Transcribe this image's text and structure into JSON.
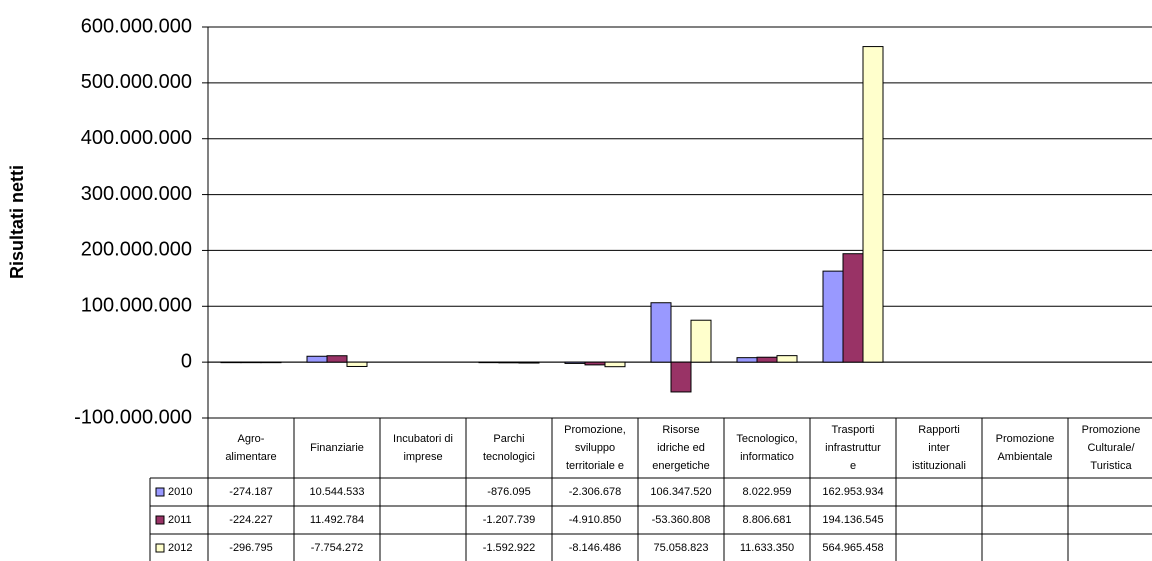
{
  "chart_data": {
    "type": "bar",
    "y_label": "Risultati netti",
    "categories": [
      "Agro-\nalimentare",
      "Finanziarie",
      "Incubatori di\nimprese",
      "Parchi\ntecnologici",
      "Promozione,\nsviluppo\nterritoriale e",
      "Risorse\nidriche ed\nenergetiche",
      "Tecnologico,\ninformatico",
      "Trasporti\ninfrastruttur\ne",
      "Rapporti\ninter\nistituzionali",
      "Promozione\nAmbientale",
      "Promozione\nCulturale/\nTuristica"
    ],
    "series": [
      {
        "name": "2010",
        "color": "#9999ff",
        "values": [
          -274187,
          10544533,
          null,
          -876095,
          -2306678,
          106347520,
          8022959,
          162953934,
          null,
          null,
          null
        ],
        "value_labels": [
          "-274.187",
          "10.544.533",
          null,
          "-876.095",
          "-2.306.678",
          "106.347.520",
          "8.022.959",
          "162.953.934",
          null,
          null,
          null
        ]
      },
      {
        "name": "2011",
        "color": "#993366",
        "values": [
          -224227,
          11492784,
          null,
          -1207739,
          -4910850,
          -53360808,
          8806681,
          194136545,
          null,
          null,
          null
        ],
        "value_labels": [
          "-224.227",
          "11.492.784",
          null,
          "-1.207.739",
          "-4.910.850",
          "-53.360.808",
          "8.806.681",
          "194.136.545",
          null,
          null,
          null
        ]
      },
      {
        "name": "2012",
        "color": "#ffffcc",
        "values": [
          -296795,
          -7754272,
          null,
          -1592922,
          -8146486,
          75058823,
          11633350,
          564965458,
          null,
          null,
          null
        ],
        "value_labels": [
          "-296.795",
          "-7.754.272",
          null,
          "-1.592.922",
          "-8.146.486",
          "75.058.823",
          "11.633.350",
          "564.965.458",
          null,
          null,
          null
        ]
      }
    ],
    "ylim": [
      -100000000,
      600000000
    ],
    "yticks": [
      {
        "value": -100000000,
        "label": "-100.000.000"
      },
      0,
      {
        "value": 100000000,
        "label": "100.000.000"
      },
      {
        "value": 200000000,
        "label": "200.000.000"
      },
      {
        "value": 300000000,
        "label": "300.000.000"
      },
      {
        "value": 400000000,
        "label": "400.000.000"
      },
      {
        "value": 500000000,
        "label": "500.000.000"
      },
      {
        "value": 600000000,
        "label": "600.000.000"
      }
    ],
    "grid": true
  }
}
